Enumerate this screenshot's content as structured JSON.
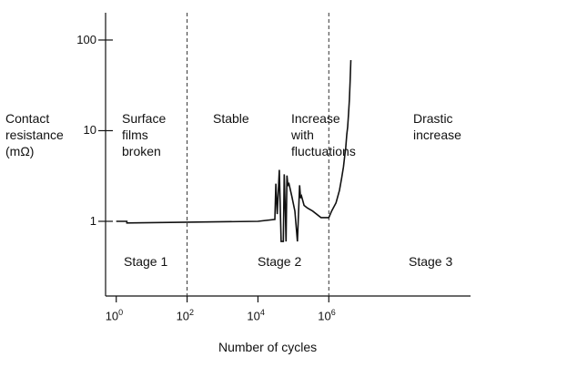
{
  "chart_data": {
    "type": "line",
    "xlabel": "Number of cycles",
    "ylabel": "Contact\nresistance\n(mΩ)",
    "x_scale": "log",
    "y_scale": "log",
    "xlim": [
      0.5,
      10000000000
    ],
    "ylim": [
      0.15,
      200
    ],
    "x_ticks": [
      {
        "base": "10",
        "exp": "0"
      },
      {
        "base": "10",
        "exp": "2"
      },
      {
        "base": "10",
        "exp": "4"
      },
      {
        "base": "10",
        "exp": "6"
      }
    ],
    "y_ticks": [
      "1",
      "10",
      "100"
    ],
    "stage_boundaries": [
      100,
      1000000
    ],
    "regions": [
      {
        "phase": "Surface\nfilms\nbroken",
        "stage": "Stage 1"
      },
      {
        "phase": "Stable",
        "stage": ""
      },
      {
        "phase": "Increase\nwith\nfluctuations",
        "stage": "Stage 2"
      },
      {
        "phase": "Drastic\nincrease",
        "stage": "Stage 3"
      }
    ],
    "series": [
      {
        "x": [
          1,
          2,
          2,
          10000,
          30000,
          32000,
          35000,
          40000,
          45000,
          52000,
          55000,
          60000,
          62000,
          66000,
          70000,
          75000,
          90000,
          110000,
          130000,
          150000,
          160000,
          170000,
          200000,
          250000,
          350000,
          600000,
          1000000,
          1200000,
          1600000,
          2000000,
          2300000,
          2600000,
          2800000,
          3000000,
          3200000,
          3400000,
          3600000,
          3800000,
          4000000,
          4200000
        ],
        "y": [
          1,
          1,
          0.96,
          1,
          1.05,
          2.6,
          1.2,
          3.7,
          0.6,
          0.6,
          3.3,
          1.1,
          0.6,
          3.2,
          2.5,
          2.6,
          1.9,
          1.3,
          0.6,
          2.5,
          1.8,
          1.9,
          1.5,
          1.4,
          1.3,
          1.1,
          1.1,
          1.3,
          1.6,
          2.2,
          3.0,
          4.0,
          5.2,
          6.5,
          9,
          11,
          15,
          22,
          35,
          60
        ]
      }
    ]
  }
}
